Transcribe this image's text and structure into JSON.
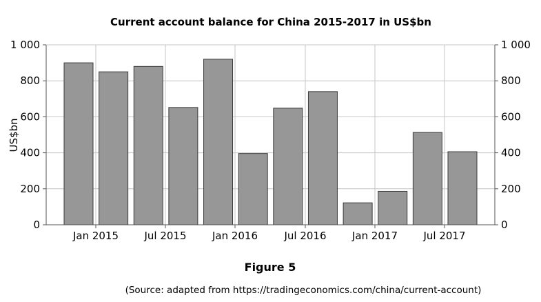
{
  "chart_data": {
    "type": "bar",
    "title": "Current account balance for China 2015-2017 in US$bn",
    "ylabel": "US$bn",
    "xlabel": "",
    "ylim": [
      0,
      1000
    ],
    "yticks": [
      "0",
      "200",
      "400",
      "600",
      "800",
      "1 000"
    ],
    "xtick_labels": [
      "Jan 2015",
      "Jul 2015",
      "Jan 2016",
      "Jul 2016",
      "Jan 2017",
      "Jul 2017"
    ],
    "grid": true,
    "dual_y_axis": true,
    "bar_color": "#979797",
    "values": [
      900,
      850,
      880,
      652,
      920,
      396,
      648,
      740,
      122,
      186,
      513,
      406
    ]
  },
  "figure_label": "Figure 5",
  "source": "(Source: adapted from https://tradingeconomics.com/china/current-account)"
}
